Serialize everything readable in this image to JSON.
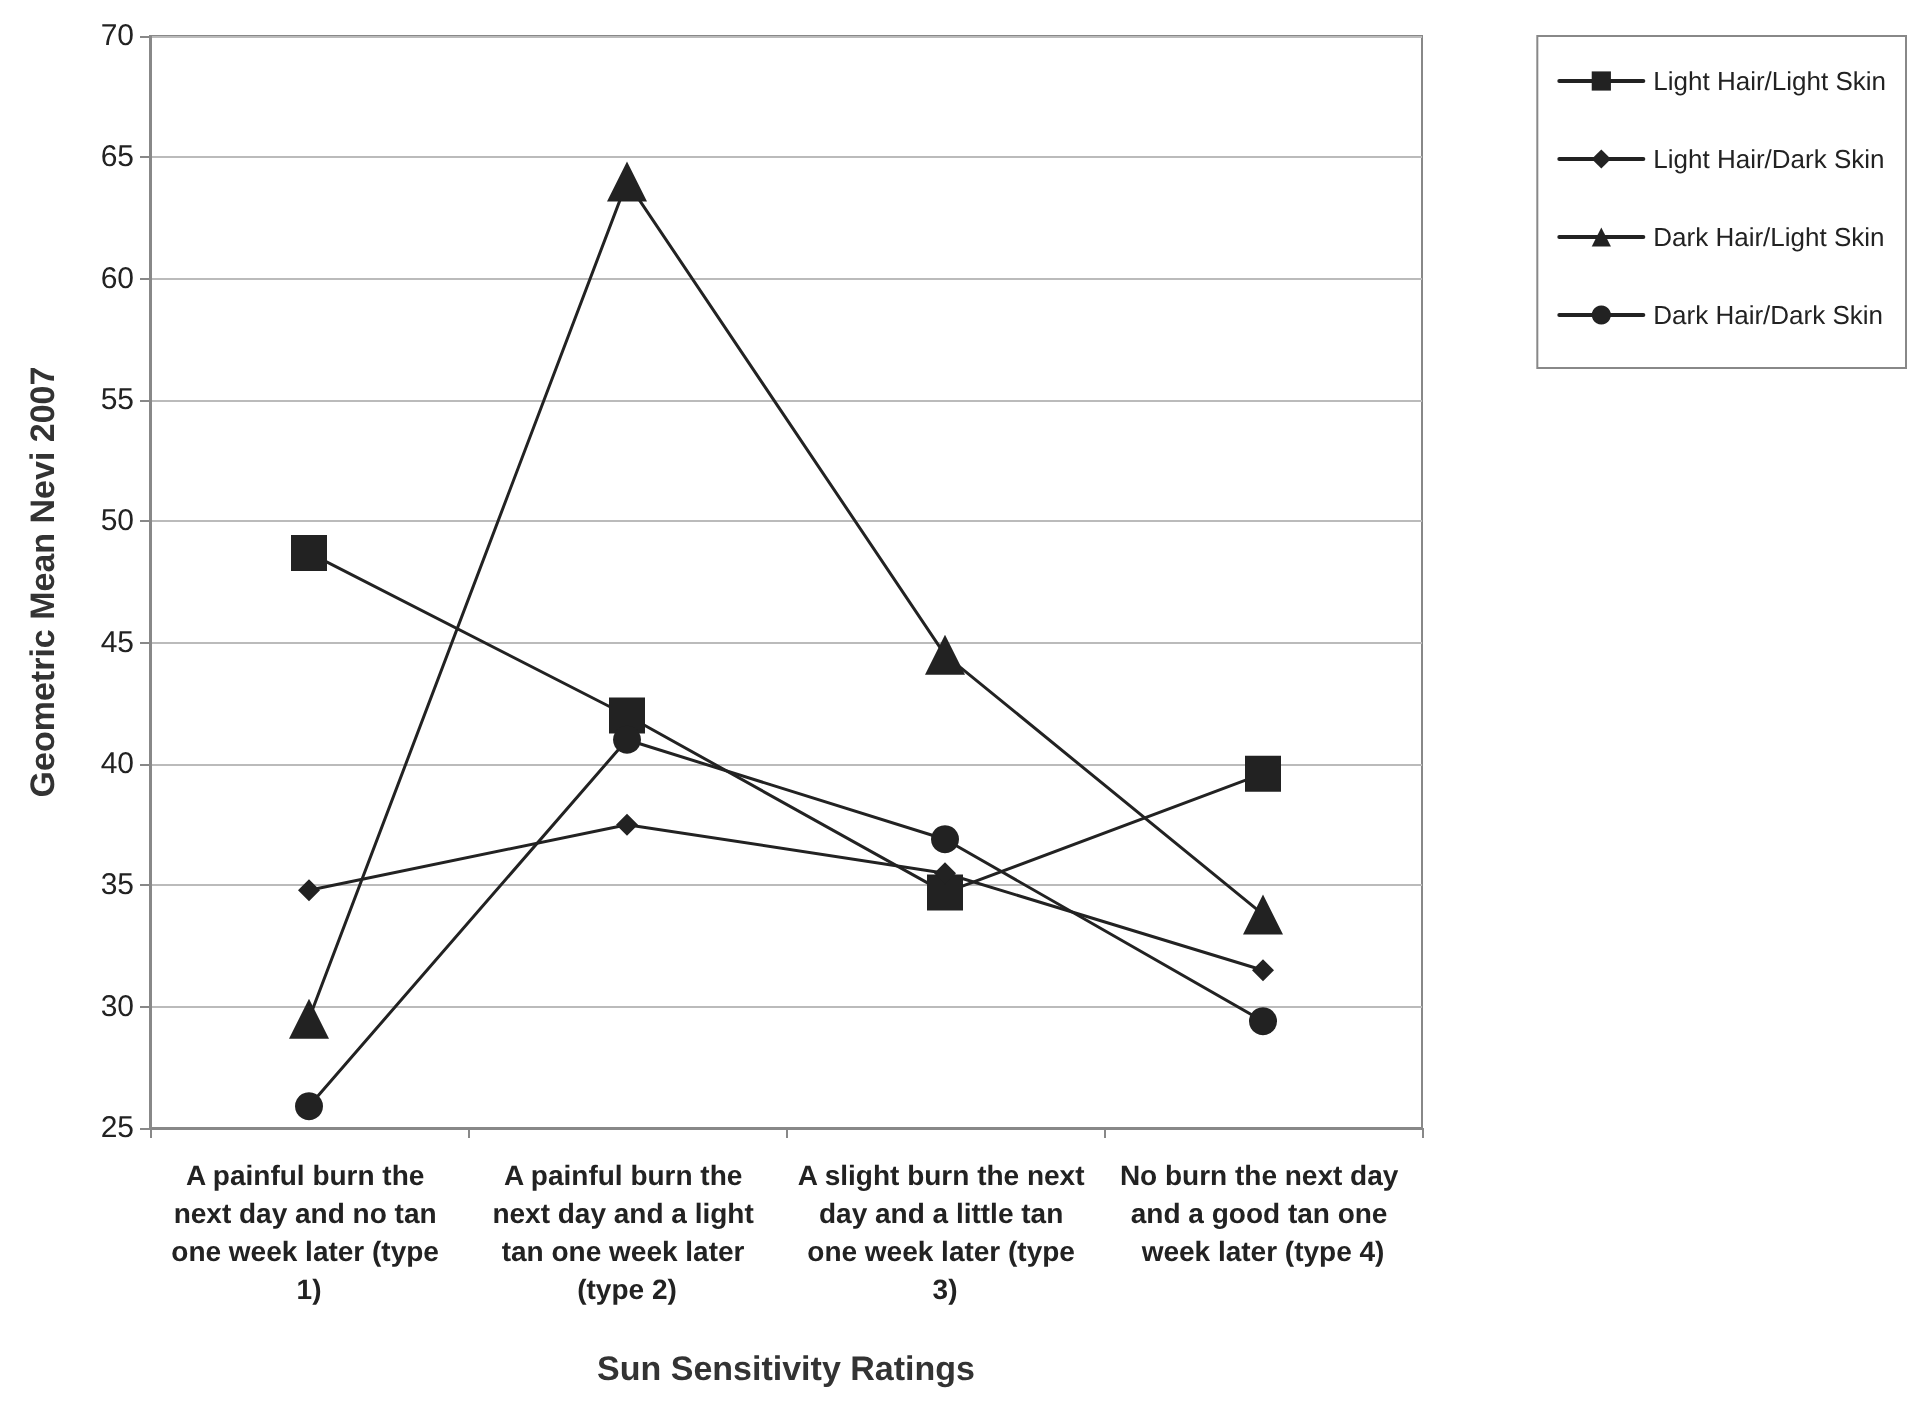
{
  "chart_data": {
    "type": "line",
    "xlabel": "Sun Sensitivity Ratings",
    "ylabel": "Geometric Mean Nevi 2007",
    "categories": [
      "A painful burn the next day and no tan one week later (type 1)",
      "A painful burn the next day and a light tan one week later (type 2)",
      "A slight burn the next day and a little tan one week later (type 3)",
      "No burn the next day and a good tan one week later (type 4)"
    ],
    "series": [
      {
        "name": "Light Hair/Light Skin",
        "color": "#222222",
        "marker": "square",
        "values": [
          48.7,
          42,
          34.7,
          39.6
        ]
      },
      {
        "name": "Light Hair/Dark Skin",
        "color": "#222222",
        "marker": "diamond",
        "values": [
          34.8,
          37.5,
          35.5,
          31.5
        ]
      },
      {
        "name": "Dark Hair/Light Skin",
        "color": "#222222",
        "marker": "triangle",
        "values": [
          29.5,
          64,
          44.5,
          33.8
        ]
      },
      {
        "name": "Dark Hair/Dark Skin",
        "color": "#222222",
        "marker": "circle",
        "values": [
          25.9,
          41,
          36.9,
          29.4
        ]
      }
    ],
    "ylim": [
      25,
      70
    ],
    "yticks": [
      25,
      30,
      35,
      40,
      45,
      50,
      55,
      60,
      65,
      70
    ],
    "grid": "y",
    "legend": "top right",
    "line_style": "solid"
  }
}
